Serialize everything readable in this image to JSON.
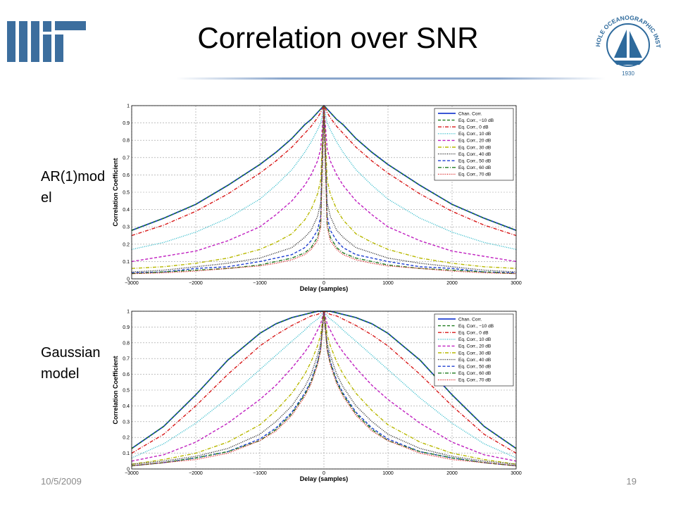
{
  "slide": {
    "title": "Correlation over SNR",
    "date": "10/5/2009",
    "page": "19",
    "label_top": "AR(1)model",
    "label_bottom": "Gaussian model"
  },
  "logos": {
    "mit": "MIT",
    "whoi_ring": "WOODS HOLE OCEANOGRAPHIC INSTITUTION",
    "whoi_year": "1930"
  },
  "colors": {
    "accent_rule": "#8aa6cc",
    "mit_blue": "#3c6e9e",
    "whoi_blue": "#2e6a9c"
  },
  "chart_data": [
    {
      "type": "line",
      "name": "AR(1) model",
      "xlabel": "Delay (samples)",
      "ylabel": "Correlation Coefficient",
      "xlim": [
        -3000,
        3000
      ],
      "ylim": [
        0,
        1
      ],
      "xticks": [
        -3000,
        -2000,
        -1000,
        0,
        1000,
        2000,
        3000
      ],
      "yticks": [
        0,
        0.1,
        0.2,
        0.3,
        0.4,
        0.5,
        0.6,
        0.7,
        0.8,
        0.9,
        1
      ],
      "grid": true,
      "legend_position": "top-right",
      "x": [
        0,
        50,
        100,
        200,
        300,
        500,
        750,
        1000,
        1500,
        2000,
        2500,
        3000
      ],
      "series": [
        {
          "name": "Chan. Corr.",
          "color": "#1f3fd0",
          "style": "solid",
          "values": [
            1.0,
            0.98,
            0.96,
            0.92,
            0.89,
            0.81,
            0.73,
            0.66,
            0.54,
            0.43,
            0.35,
            0.28
          ]
        },
        {
          "name": "Eq. Corr., −10 dB",
          "color": "#1e7b1e",
          "style": "dashed",
          "values": [
            1.0,
            0.98,
            0.96,
            0.92,
            0.89,
            0.81,
            0.73,
            0.66,
            0.54,
            0.43,
            0.35,
            0.28
          ]
        },
        {
          "name": "Eq. Corr., 0 dB",
          "color": "#d81818",
          "style": "dashdot",
          "values": [
            1.0,
            0.96,
            0.93,
            0.88,
            0.84,
            0.76,
            0.68,
            0.61,
            0.49,
            0.39,
            0.31,
            0.25
          ]
        },
        {
          "name": "Eq. Corr., 10 dB",
          "color": "#29b8c8",
          "style": "dotted",
          "values": [
            1.0,
            0.9,
            0.86,
            0.79,
            0.73,
            0.63,
            0.54,
            0.46,
            0.35,
            0.27,
            0.21,
            0.17
          ]
        },
        {
          "name": "Eq. Corr., 20 dB",
          "color": "#c020c0",
          "style": "dashed",
          "values": [
            1.0,
            0.75,
            0.68,
            0.6,
            0.54,
            0.45,
            0.37,
            0.3,
            0.22,
            0.16,
            0.13,
            0.1
          ]
        },
        {
          "name": "Eq. Corr., 30 dB",
          "color": "#b8b800",
          "style": "dashdot",
          "values": [
            1.0,
            0.57,
            0.49,
            0.4,
            0.34,
            0.26,
            0.21,
            0.17,
            0.12,
            0.09,
            0.07,
            0.06
          ]
        },
        {
          "name": "Eq. Corr., 40 dB",
          "color": "#202020",
          "style": "dotted",
          "values": [
            1.0,
            0.44,
            0.36,
            0.28,
            0.24,
            0.18,
            0.15,
            0.12,
            0.09,
            0.07,
            0.05,
            0.04
          ]
        },
        {
          "name": "Eq. Corr., 50 dB",
          "color": "#1f3fd0",
          "style": "dashed",
          "values": [
            1.0,
            0.36,
            0.28,
            0.22,
            0.18,
            0.14,
            0.12,
            0.1,
            0.07,
            0.06,
            0.04,
            0.035
          ]
        },
        {
          "name": "Eq. Corr., 60 dB",
          "color": "#1e7b1e",
          "style": "dashdot",
          "values": [
            1.0,
            0.32,
            0.24,
            0.18,
            0.15,
            0.12,
            0.1,
            0.08,
            0.06,
            0.05,
            0.04,
            0.03
          ]
        },
        {
          "name": "Eq. Corr., 70 dB",
          "color": "#d81818",
          "style": "dotted",
          "values": [
            1.0,
            0.3,
            0.22,
            0.17,
            0.14,
            0.11,
            0.09,
            0.075,
            0.06,
            0.045,
            0.035,
            0.03
          ]
        }
      ]
    },
    {
      "type": "line",
      "name": "Gaussian model",
      "xlabel": "Delay (samples)",
      "ylabel": "Correlation Coefficient",
      "xlim": [
        -3000,
        3000
      ],
      "ylim": [
        0,
        1
      ],
      "xticks": [
        -3000,
        -2000,
        -1000,
        0,
        1000,
        2000,
        3000
      ],
      "yticks": [
        0,
        0.1,
        0.2,
        0.3,
        0.4,
        0.5,
        0.6,
        0.7,
        0.8,
        0.9,
        1
      ],
      "grid": true,
      "legend_position": "top-right",
      "x": [
        0,
        50,
        100,
        200,
        300,
        500,
        750,
        1000,
        1500,
        2000,
        2500,
        3000
      ],
      "series": [
        {
          "name": "Chan. Corr.",
          "color": "#1f3fd0",
          "style": "solid",
          "values": [
            1.0,
            1.0,
            1.0,
            0.99,
            0.98,
            0.96,
            0.92,
            0.86,
            0.69,
            0.47,
            0.27,
            0.13
          ]
        },
        {
          "name": "Eq. Corr., −10 dB",
          "color": "#1e7b1e",
          "style": "dashed",
          "values": [
            1.0,
            1.0,
            1.0,
            0.99,
            0.98,
            0.96,
            0.92,
            0.86,
            0.69,
            0.47,
            0.27,
            0.13
          ]
        },
        {
          "name": "Eq. Corr., 0 dB",
          "color": "#d81818",
          "style": "dashdot",
          "values": [
            1.0,
            0.99,
            0.98,
            0.97,
            0.95,
            0.91,
            0.85,
            0.78,
            0.6,
            0.4,
            0.22,
            0.1
          ]
        },
        {
          "name": "Eq. Corr., 10 dB",
          "color": "#29b8c8",
          "style": "dotted",
          "values": [
            1.0,
            0.97,
            0.95,
            0.92,
            0.88,
            0.81,
            0.72,
            0.63,
            0.45,
            0.29,
            0.16,
            0.07
          ]
        },
        {
          "name": "Eq. Corr., 20 dB",
          "color": "#c020c0",
          "style": "dashed",
          "values": [
            1.0,
            0.92,
            0.88,
            0.8,
            0.74,
            0.64,
            0.53,
            0.44,
            0.29,
            0.17,
            0.09,
            0.05
          ]
        },
        {
          "name": "Eq. Corr., 30 dB",
          "color": "#b8b800",
          "style": "dashdot",
          "values": [
            1.0,
            0.85,
            0.78,
            0.68,
            0.6,
            0.48,
            0.37,
            0.28,
            0.17,
            0.1,
            0.06,
            0.03
          ]
        },
        {
          "name": "Eq. Corr., 40 dB",
          "color": "#202020",
          "style": "dotted",
          "values": [
            1.0,
            0.8,
            0.72,
            0.6,
            0.52,
            0.4,
            0.3,
            0.22,
            0.13,
            0.08,
            0.05,
            0.03
          ]
        },
        {
          "name": "Eq. Corr., 50 dB",
          "color": "#1f3fd0",
          "style": "dashed",
          "values": [
            1.0,
            0.77,
            0.68,
            0.56,
            0.48,
            0.36,
            0.26,
            0.19,
            0.11,
            0.07,
            0.04,
            0.02
          ]
        },
        {
          "name": "Eq. Corr., 60 dB",
          "color": "#1e7b1e",
          "style": "dashdot",
          "values": [
            1.0,
            0.76,
            0.67,
            0.55,
            0.47,
            0.35,
            0.25,
            0.18,
            0.11,
            0.07,
            0.04,
            0.02
          ]
        },
        {
          "name": "Eq. Corr., 70 dB",
          "color": "#d81818",
          "style": "dotted",
          "values": [
            1.0,
            0.75,
            0.66,
            0.54,
            0.46,
            0.34,
            0.24,
            0.18,
            0.1,
            0.06,
            0.04,
            0.02
          ]
        }
      ]
    }
  ]
}
